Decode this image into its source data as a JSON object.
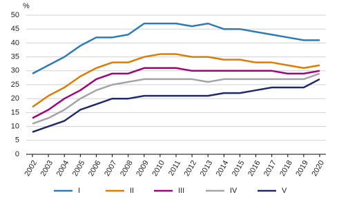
{
  "chart_data": {
    "type": "line",
    "y_label": "%",
    "categories": [
      "2002",
      "2003",
      "2004",
      "2005",
      "2006",
      "2007",
      "2008",
      "2009",
      "2010",
      "2011",
      "2012",
      "2013",
      "2014",
      "2015",
      "2016",
      "2017",
      "2018",
      "2019",
      "2020"
    ],
    "series": [
      {
        "name": "I",
        "color": "#2b7bba",
        "values": [
          29,
          32,
          35,
          39,
          42,
          42,
          43,
          47,
          47,
          47,
          46,
          47,
          45,
          45,
          44,
          43,
          42,
          41,
          41
        ]
      },
      {
        "name": "II",
        "color": "#e07b00",
        "values": [
          17,
          21,
          24,
          28,
          31,
          33,
          33,
          35,
          36,
          36,
          35,
          35,
          34,
          34,
          33,
          33,
          32,
          31,
          32
        ]
      },
      {
        "name": "III",
        "color": "#a3007e",
        "values": [
          13,
          16,
          20,
          23,
          27,
          29,
          29,
          31,
          31,
          31,
          30,
          30,
          30,
          30,
          30,
          30,
          29,
          29,
          30
        ]
      },
      {
        "name": "IV",
        "color": "#a3a2ad",
        "values": [
          11,
          13,
          16,
          20,
          23,
          25,
          26,
          27,
          27,
          27,
          27,
          26,
          27,
          27,
          27,
          27,
          27,
          27,
          29
        ]
      },
      {
        "name": "V",
        "color": "#1f2a6b",
        "values": [
          8,
          10,
          12,
          16,
          18,
          20,
          20,
          21,
          21,
          21,
          21,
          21,
          22,
          22,
          23,
          24,
          24,
          24,
          27
        ]
      }
    ],
    "ylim": [
      0,
      50
    ],
    "yticks": [
      0,
      5,
      10,
      15,
      20,
      25,
      30,
      35,
      40,
      45,
      50
    ],
    "grid": true,
    "legend": "bottom"
  }
}
